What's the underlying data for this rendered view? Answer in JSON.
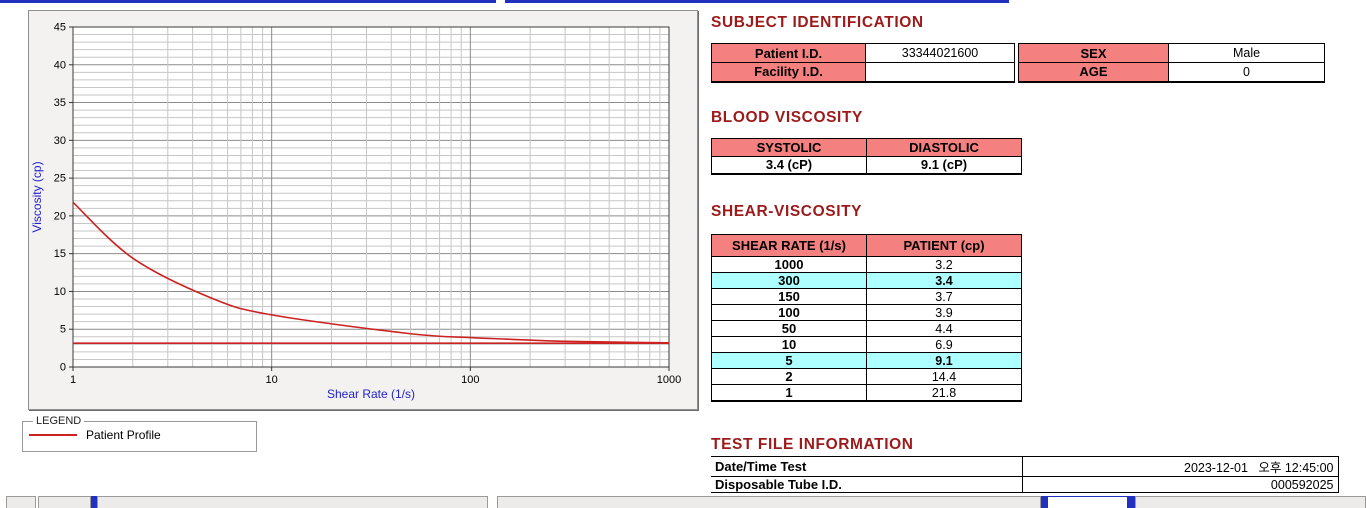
{
  "colors": {
    "header_text": "#9C1A1A",
    "table_header_bg": "#F58080",
    "highlight_bg": "#AEFFFF",
    "series_red": "#CC2222",
    "axis_blue": "#2222CC",
    "window_blue": "#2230C0"
  },
  "legend": {
    "box_label": "LEGEND",
    "series_label": "Patient Profile"
  },
  "subject_identification": {
    "title": "SUBJECT IDENTIFICATION",
    "patient_id_label": "Patient I.D.",
    "patient_id": "33344021600",
    "facility_id_label": "Facility I.D.",
    "facility_id": "",
    "sex_label": "SEX",
    "sex": "Male",
    "age_label": "AGE",
    "age": "0"
  },
  "blood_viscosity": {
    "title": "BLOOD VISCOSITY",
    "systolic_label": "SYSTOLIC",
    "diastolic_label": "DIASTOLIC",
    "systolic": "3.4 (cP)",
    "diastolic": "9.1 (cP)"
  },
  "shear_viscosity": {
    "title": "SHEAR-VISCOSITY",
    "col1": "SHEAR RATE (1/s)",
    "col2": "PATIENT (cp)",
    "rows": [
      {
        "shear": "1000",
        "patient": "3.2",
        "highlight": false
      },
      {
        "shear": "300",
        "patient": "3.4",
        "highlight": true
      },
      {
        "shear": "150",
        "patient": "3.7",
        "highlight": false
      },
      {
        "shear": "100",
        "patient": "3.9",
        "highlight": false
      },
      {
        "shear": "50",
        "patient": "4.4",
        "highlight": false
      },
      {
        "shear": "10",
        "patient": "6.9",
        "highlight": false
      },
      {
        "shear": "5",
        "patient": "9.1",
        "highlight": true
      },
      {
        "shear": "2",
        "patient": "14.4",
        "highlight": false
      },
      {
        "shear": "1",
        "patient": "21.8",
        "highlight": false
      }
    ]
  },
  "test_file_information": {
    "title": "TEST FILE INFORMATION",
    "date_label": "Date/Time Test",
    "date_value": "2023-12-01   오후 12:45:00",
    "tube_label": "Disposable Tube I.D.",
    "tube_value": "000592025"
  },
  "chart_data": {
    "type": "line",
    "title": "",
    "xlabel": "Shear Rate (1/s)",
    "ylabel": "Viscosity (cp)",
    "x_scale": "log",
    "xlim": [
      1,
      1000
    ],
    "ylim": [
      0,
      45
    ],
    "x_ticks": [
      1,
      10,
      100,
      1000
    ],
    "y_ticks": [
      0,
      5,
      10,
      15,
      20,
      25,
      30,
      35,
      40,
      45
    ],
    "grid": "on",
    "legend_position": "below-left",
    "series": [
      {
        "name": "Patient Profile",
        "color": "#CC2222",
        "x": [
          1,
          2,
          5,
          10,
          50,
          100,
          150,
          300,
          1000
        ],
        "y": [
          21.8,
          14.4,
          9.1,
          6.9,
          4.4,
          3.9,
          3.7,
          3.4,
          3.2
        ]
      },
      {
        "name": "",
        "color": "#CC2222",
        "x": [
          1,
          1000
        ],
        "y": [
          3.15,
          3.15
        ]
      }
    ]
  }
}
